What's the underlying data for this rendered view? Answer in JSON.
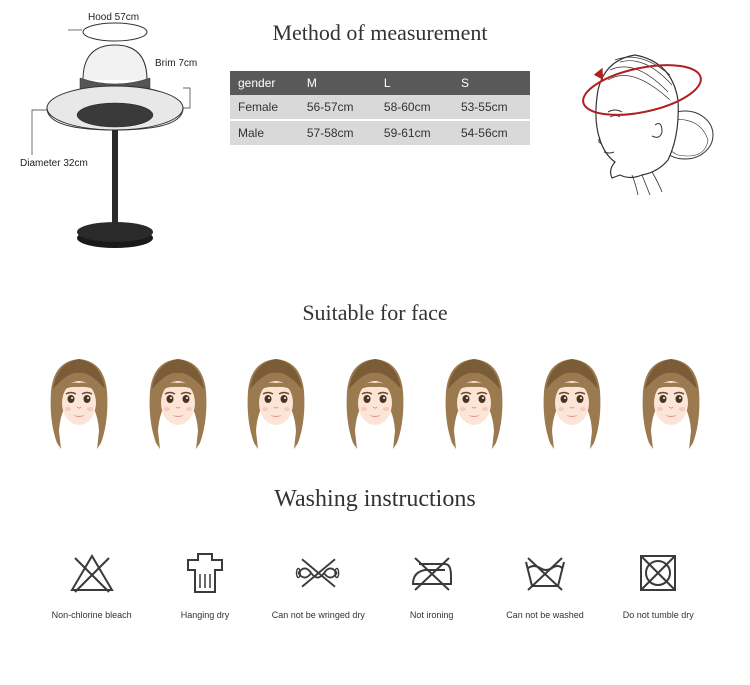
{
  "titles": {
    "measurement": "Method of measurement",
    "face": "Suitable for face",
    "washing": "Washing instructions"
  },
  "hat_labels": {
    "hood": "Hood 57cm",
    "brim": "Brim 7cm",
    "diameter": "Diameter 32cm"
  },
  "size_table": {
    "headers": [
      "gender",
      "M",
      "L",
      "S"
    ],
    "rows": [
      [
        "Female",
        "56-57cm",
        "58-60cm",
        "53-55cm"
      ],
      [
        "Male",
        "57-58cm",
        "59-61cm",
        "54-56cm"
      ]
    ]
  },
  "washing": [
    "Non-chlorine bleach",
    "Hanging dry",
    "Can not be wringed dry",
    "Not ironing",
    "Can not be washed",
    "Do not tumble dry"
  ],
  "colors": {
    "text": "#333333",
    "table_header_bg": "#595959",
    "table_row_bg": "#d9d9d9",
    "hair": "#9b7a4f",
    "hair_dark": "#7a5c36",
    "skin": "#fce4d6",
    "arrow_red": "#b02020",
    "icon_stroke": "#3a3a3a"
  },
  "face_count": 7
}
